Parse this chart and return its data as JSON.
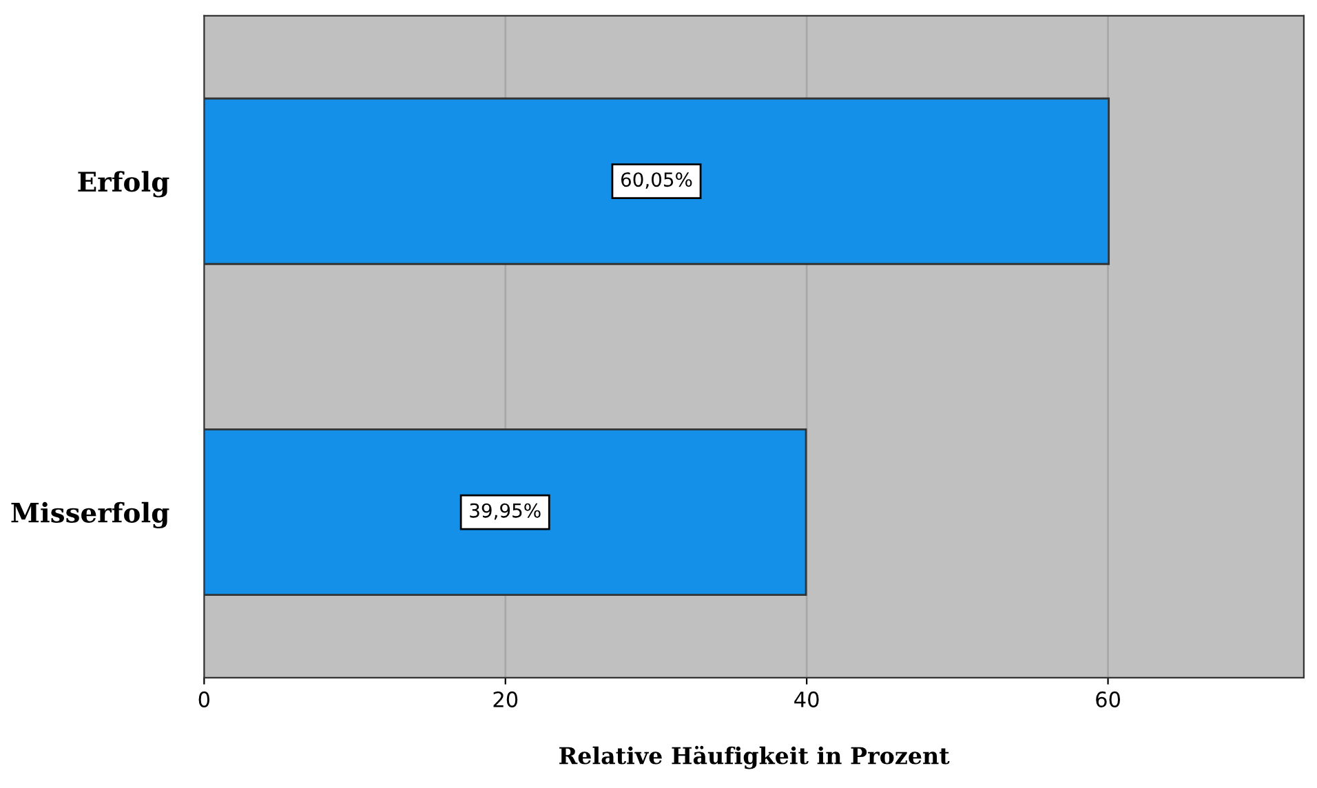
{
  "chart_data": {
    "type": "bar",
    "orientation": "horizontal",
    "xlabel": "Relative Häufigkeit in Prozent",
    "categories": [
      "Erfolg",
      "Misserfolg"
    ],
    "values": [
      60.05,
      39.95
    ],
    "value_labels": [
      "60,05%",
      "39,95%"
    ],
    "color": "#1490e8",
    "xlim": [
      0,
      73
    ],
    "xticks": [
      0,
      20,
      40,
      60
    ],
    "grid": "x",
    "legend": false
  }
}
